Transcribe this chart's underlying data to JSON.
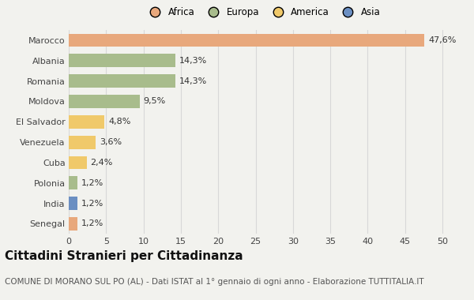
{
  "categories": [
    "Marocco",
    "Albania",
    "Romania",
    "Moldova",
    "El Salvador",
    "Venezuela",
    "Cuba",
    "Polonia",
    "India",
    "Senegal"
  ],
  "values": [
    47.6,
    14.3,
    14.3,
    9.5,
    4.8,
    3.6,
    2.4,
    1.2,
    1.2,
    1.2
  ],
  "labels": [
    "47,6%",
    "14,3%",
    "14,3%",
    "9,5%",
    "4,8%",
    "3,6%",
    "2,4%",
    "1,2%",
    "1,2%",
    "1,2%"
  ],
  "colors": [
    "#E8A87C",
    "#A8BC8C",
    "#A8BC8C",
    "#A8BC8C",
    "#F0C96A",
    "#F0C96A",
    "#F0C96A",
    "#A8BC8C",
    "#6B8FC2",
    "#E8A87C"
  ],
  "continents": [
    "Africa",
    "Europa",
    "America",
    "Asia"
  ],
  "legend_colors": [
    "#E8A87C",
    "#A8BC8C",
    "#F0C96A",
    "#6B8FC2"
  ],
  "xlim": [
    0,
    52
  ],
  "xticks": [
    0,
    5,
    10,
    15,
    20,
    25,
    30,
    35,
    40,
    45,
    50
  ],
  "title": "Cittadini Stranieri per Cittadinanza",
  "subtitle": "COMUNE DI MORANO SUL PO (AL) - Dati ISTAT al 1° gennaio di ogni anno - Elaborazione TUTTITALIA.IT",
  "background_color": "#F2F2EE",
  "grid_color": "#D8D8D8",
  "title_fontsize": 11,
  "subtitle_fontsize": 7.5,
  "label_fontsize": 8,
  "tick_fontsize": 8,
  "legend_fontsize": 8.5
}
